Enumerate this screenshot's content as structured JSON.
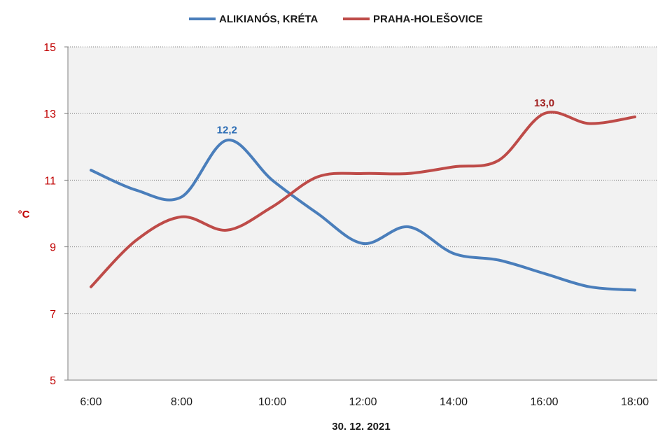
{
  "chart_data": {
    "type": "line",
    "xlabel": "30. 12. 2021",
    "ylabel": "°C",
    "ylim": [
      5,
      15
    ],
    "yticks": [
      "5",
      "7",
      "9",
      "11",
      "13",
      "15"
    ],
    "x": [
      "6:00",
      "7:00",
      "8:00",
      "9:00",
      "10:00",
      "11:00",
      "12:00",
      "13:00",
      "14:00",
      "15:00",
      "16:00",
      "17:00",
      "18:00"
    ],
    "xtick_labels": [
      "6:00",
      "8:00",
      "10:00",
      "12:00",
      "14:00",
      "16:00",
      "18:00"
    ],
    "grid": true,
    "legend_position": "top",
    "series": [
      {
        "name": "ALIKIANÓS, KRÉTA",
        "color": "#4A7EBB",
        "values": [
          11.3,
          10.7,
          10.5,
          12.2,
          11.0,
          10.0,
          9.1,
          9.6,
          8.8,
          8.6,
          8.2,
          7.8,
          7.7
        ],
        "max_label": "12,2",
        "max_index": 3
      },
      {
        "name": "PRAHA-HOLEŠOVICE",
        "color": "#BE4B48",
        "values": [
          7.8,
          9.2,
          9.9,
          9.5,
          10.2,
          11.1,
          11.2,
          11.2,
          11.4,
          11.6,
          13.0,
          12.7,
          12.9
        ],
        "max_label": "13,0",
        "max_index": 10
      }
    ],
    "colors": {
      "plot_background": "#F2F2F2",
      "y_tick_color": "#C00000",
      "ylabel_color": "#C00000",
      "xlabel_color": "#1a1a1a",
      "label_series_1": "#2E6EB5",
      "label_series_2": "#A11F1F"
    }
  }
}
